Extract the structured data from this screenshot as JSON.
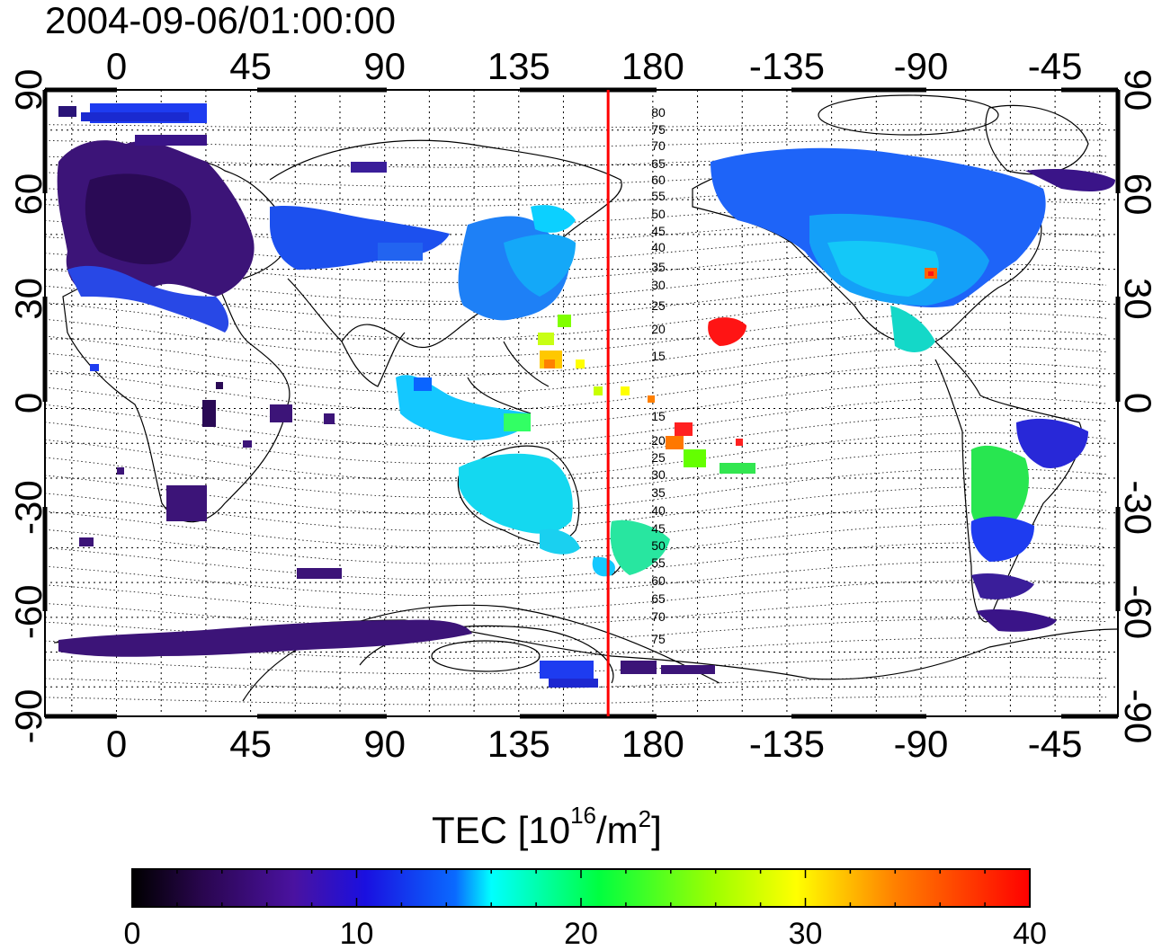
{
  "title": "2004-09-06/01:00:00",
  "map": {
    "lon_ticks": [
      "0",
      "45",
      "90",
      "135",
      "180",
      "-135",
      "-90",
      "-45"
    ],
    "lat_ticks": [
      "90",
      "60",
      "30",
      "0",
      "-30",
      "-60",
      "-90"
    ],
    "contour_labels": [
      "80",
      "75",
      "70",
      "65",
      "60",
      "55",
      "50",
      "45",
      "40",
      "35",
      "30",
      "25",
      "20",
      "15",
      "15",
      "20",
      "25",
      "30",
      "35",
      "40",
      "45",
      "50",
      "55",
      "60",
      "65",
      "70",
      "75"
    ],
    "meridian_line_lon": 165,
    "meridian_line_color": "#ff0000"
  },
  "colorbar": {
    "title_main": "TEC  [10",
    "title_exp": "16",
    "title_unit": "/m",
    "title_unit_exp": "2",
    "title_end": "]",
    "ticks": [
      "0",
      "10",
      "20",
      "30",
      "40"
    ],
    "min": 0,
    "max": 40,
    "stops": [
      "#000000",
      "#3a0a6e",
      "#5a1ab0",
      "#0000ff",
      "#00aaff",
      "#00ffff",
      "#00ff00",
      "#ffff00",
      "#ff8000",
      "#ff0000"
    ]
  }
}
